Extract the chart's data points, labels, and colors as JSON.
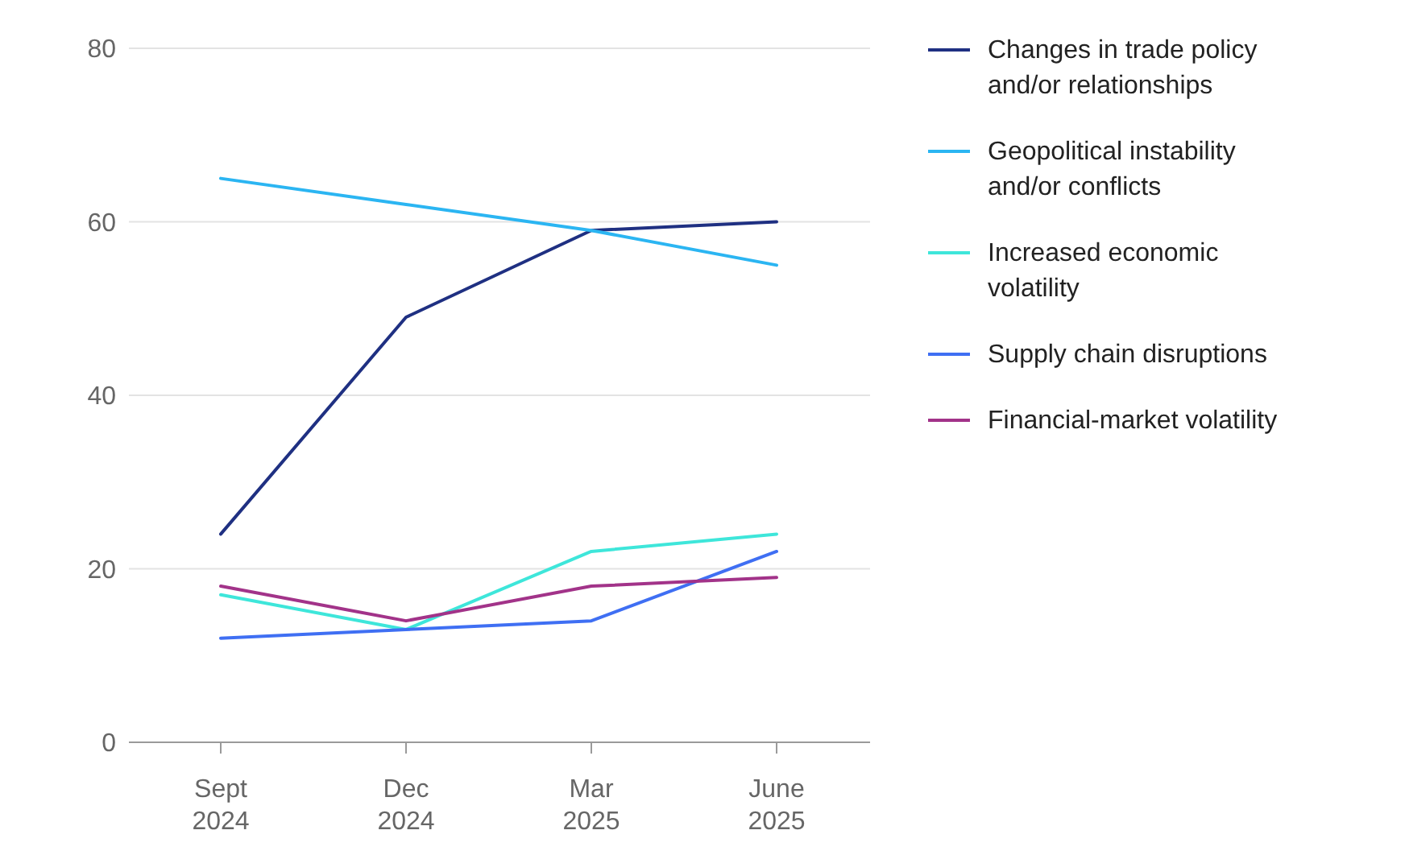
{
  "chart_data": {
    "type": "line",
    "categories": [
      "Sept 2024",
      "Dec 2024",
      "Mar 2025",
      "June 2025"
    ],
    "ylim": [
      0,
      80
    ],
    "yticks": [
      0,
      20,
      40,
      60,
      80
    ],
    "grid": "y",
    "legend": "top right",
    "marker": "none",
    "line_style": "solid",
    "series": [
      {
        "name": "Changes in trade policy and/or relationships",
        "color": "#1f3082",
        "values": [
          24,
          49,
          59,
          60
        ]
      },
      {
        "name": "Geopolitical instability and/or conflicts",
        "color": "#2bb5f2",
        "values": [
          65,
          62,
          59,
          55
        ]
      },
      {
        "name": "Increased economic volatility",
        "color": "#3ee6da",
        "values": [
          17,
          13,
          22,
          24
        ]
      },
      {
        "name": "Supply chain disruptions",
        "color": "#3f6ff3",
        "values": [
          12,
          13,
          14,
          22
        ]
      },
      {
        "name": "Financial-market volatility",
        "color": "#a23389",
        "values": [
          18,
          14,
          18,
          19
        ]
      }
    ]
  }
}
